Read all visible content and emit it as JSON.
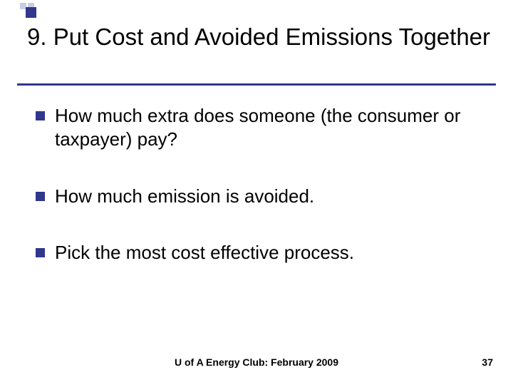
{
  "decoration": {
    "small_square_color": "#c9cde4",
    "big_square_color": "#30378c",
    "underline_color": "#30378c"
  },
  "title": "9. Put Cost and Avoided Emissions Together",
  "bullets": [
    {
      "text": "How much extra does someone (the consumer or taxpayer) pay?"
    },
    {
      "text": "How much emission is avoided."
    },
    {
      "text": "Pick the most cost effective process."
    }
  ],
  "bullet_marker_color": "#30378c",
  "footer": "U of A Energy Club: February 2009",
  "page_number": "37",
  "typography": {
    "title_fontsize": 33,
    "bullet_fontsize": 26,
    "footer_fontsize": 14,
    "text_color": "#000000"
  },
  "background_color": "#ffffff"
}
